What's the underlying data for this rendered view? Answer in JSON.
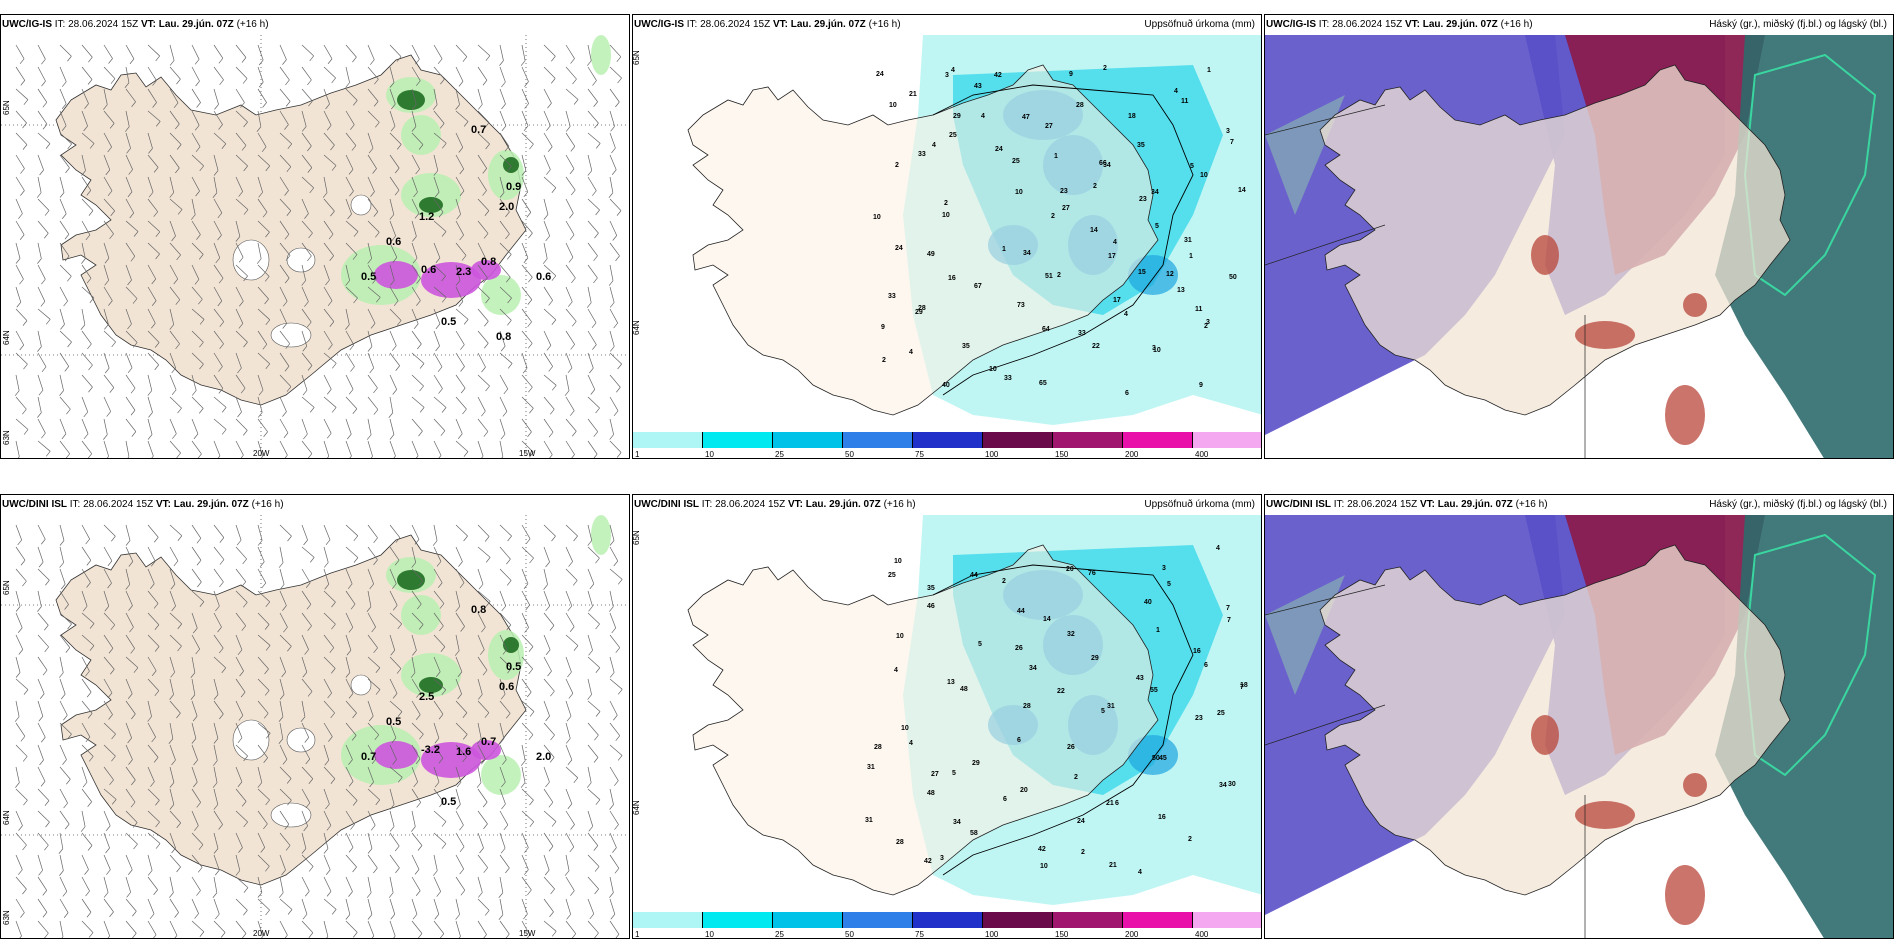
{
  "panels": {
    "top_left": {
      "model": "UWC/IG-IS",
      "it": "IT: 28.06.2024 15Z",
      "vt": "VT: Lau. 29.jún. 07Z",
      "lead": "(+16 h)",
      "lat_labels": [
        "65N",
        "64N",
        "63N"
      ],
      "lon_labels": [
        "20W",
        "15W"
      ],
      "values": [
        "0.7",
        "1.2",
        "0.9",
        "2.0",
        "0.6",
        "0.5",
        "0.6",
        "0.8",
        "2.3",
        "0.6",
        "0.5",
        "0.8"
      ]
    },
    "top_mid": {
      "model": "UWC/IG-IS",
      "it": "IT: 28.06.2024 15Z",
      "vt": "VT: Lau. 29.jún. 07Z",
      "lead": "(+16 h)",
      "right_title": "Uppsöfnuð úrkoma (mm)",
      "lat_labels": [
        "65N",
        "64N"
      ],
      "values": [
        "24",
        "29",
        "24",
        "23",
        "14",
        "12",
        "11",
        "9",
        "40",
        "42",
        "47",
        "66",
        "34",
        "31",
        "50",
        "28",
        "35",
        "33",
        "9",
        "18",
        "10",
        "14",
        "24",
        "16",
        "73",
        "33",
        "2",
        "11",
        "7",
        "33",
        "10",
        "34",
        "51",
        "17",
        "3",
        "9",
        "21",
        "25",
        "25",
        "27",
        "17",
        "15",
        "3",
        "2",
        "4",
        "43",
        "27",
        "34",
        "23",
        "1",
        "33",
        "29",
        "10",
        "65",
        "28",
        "35",
        "5",
        "10",
        "49",
        "67",
        "64",
        "22",
        "6",
        "4",
        "3",
        "2",
        "2",
        "1",
        "2",
        "4",
        "10",
        "1",
        "10",
        "4",
        "10",
        "2",
        "4",
        "13",
        "2",
        "4",
        "3",
        "4",
        "1",
        "2",
        "5"
      ]
    },
    "top_right": {
      "model": "UWC/IG-IS",
      "it": "IT: 28.06.2024 15Z",
      "vt": "VT: Lau. 29.jún. 07Z",
      "lead": "(+16 h)",
      "right_title": "Háský (gr.), miðský (fj.bl.) og lágský (bl.)"
    },
    "bot_left": {
      "model": "UWC/DINI ISL",
      "it": "IT: 28.06.2024 15Z",
      "vt": "VT: Lau. 29.jún. 07Z",
      "lead": "(+16 h)",
      "lat_labels": [
        "65N",
        "64N",
        "63N"
      ],
      "lon_labels": [
        "20W",
        "15W"
      ],
      "values": [
        "0.8",
        "2.5",
        "0.5",
        "0.6",
        "0.5",
        "0.7",
        "-3.2",
        "0.7",
        "1.6",
        "2.0",
        "0.5"
      ]
    },
    "bot_mid": {
      "model": "UWC/DINI ISL",
      "it": "IT: 28.06.2024 15Z",
      "vt": "VT: Lau. 29.jún. 07Z",
      "lead": "(+16 h)",
      "right_title": "Uppsöfnuð úrkoma (mm)",
      "lat_labels": [
        "65N",
        "64N"
      ],
      "values": [
        "25",
        "35",
        "5",
        "34",
        "31",
        "50",
        "34",
        "31",
        "42",
        "44",
        "44",
        "32",
        "43",
        "23",
        "28",
        "27",
        "34",
        "42",
        "76",
        "40",
        "16",
        "18",
        "10",
        "29",
        "20",
        "24",
        "21",
        "3",
        "7",
        "10",
        "48",
        "28",
        "26",
        "21",
        "16",
        "4",
        "10",
        "46",
        "26",
        "22",
        "5",
        "45",
        "30",
        "28",
        "3",
        "2",
        "14",
        "29",
        "55",
        "25",
        "31",
        "48",
        "58",
        "10",
        "20",
        "1",
        "6",
        "7",
        "4",
        "5",
        "6",
        "2",
        "4",
        "5",
        "7",
        "4",
        "13",
        "6",
        "2",
        "6",
        "2"
      ]
    },
    "bot_right": {
      "model": "UWC/DINI ISL",
      "it": "IT: 28.06.2024 15Z",
      "vt": "VT: Lau. 29.jún. 07Z",
      "lead": "(+16 h)",
      "right_title": "Háský (gr.), miðský (fj.bl.) og lágský (bl.)"
    }
  },
  "precip_scale": {
    "labels": [
      "1",
      "10",
      "25",
      "50",
      "75",
      "100",
      "150",
      "200",
      "400"
    ],
    "colors": [
      "#aef6f6",
      "#00e8f0",
      "#00c2e8",
      "#2f7fe8",
      "#2030c8",
      "#6a0a4a",
      "#a0156e",
      "#e810a8",
      "#f4a8f0"
    ]
  },
  "colors": {
    "land": "#f2e4d4",
    "land_mid": "#fdf0e2",
    "precip_light": "#bff6f4",
    "precip_mid": "#3bd8ea",
    "precip_dark": "#1ea6e0",
    "green_light": "#b8f0b0",
    "green_dark": "#2e7a30",
    "magenta": "#cc55dd",
    "cloud_high": "#8a1c4e",
    "cloud_mid": "#5a50c8",
    "cloud_low": "#2e6a6c",
    "cloud_green": "#3ad6a0"
  }
}
